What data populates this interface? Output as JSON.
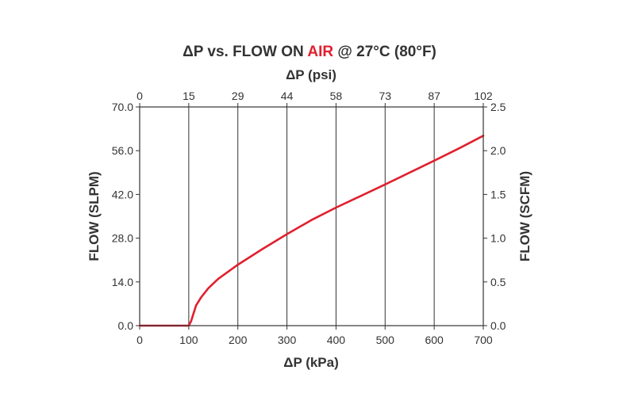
{
  "chart_data": {
    "type": "line",
    "title": {
      "prefix": "ΔP vs. FLOW ON ",
      "highlight": "AIR",
      "suffix": " @ 27°C (80°F)"
    },
    "xlabel_bottom": "ΔP (kPa)",
    "xlabel_top": "ΔP (psi)",
    "ylabel_left": "FLOW (SLPM)",
    "ylabel_right": "FLOW (SCFM)",
    "xlim": [
      0,
      700
    ],
    "ylim_left": [
      0,
      70
    ],
    "ylim_right": [
      0,
      2.5
    ],
    "x_ticks": [
      0,
      100,
      200,
      300,
      400,
      500,
      600,
      700
    ],
    "x_tick_labels": [
      "0",
      "100",
      "200",
      "300",
      "400",
      "500",
      "600",
      "700"
    ],
    "x_top_tick_labels": [
      "0",
      "15",
      "29",
      "44",
      "58",
      "73",
      "87",
      "102"
    ],
    "y_left_ticks": [
      0,
      14,
      28,
      42,
      56,
      70
    ],
    "y_left_tick_labels": [
      "0.0",
      "14.0",
      "28.0",
      "42.0",
      "56.0",
      "70.0"
    ],
    "y_right_ticks": [
      0,
      0.5,
      1.0,
      1.5,
      2.0,
      2.5
    ],
    "y_right_tick_labels": [
      "0.0",
      "0.5",
      "1.0",
      "1.5",
      "2.0",
      "2.5"
    ],
    "grid": "vertical",
    "series": [
      {
        "color": "#e0202f",
        "x": [
          0,
          100,
          105,
          110,
          115,
          125,
          140,
          160,
          200,
          250,
          300,
          350,
          400,
          450,
          500,
          550,
          600,
          650,
          700
        ],
        "y": [
          0,
          0,
          1.5,
          4,
          6.5,
          9,
          12,
          15,
          19.5,
          24.5,
          29.3,
          33.8,
          37.8,
          41.5,
          45.2,
          49,
          52.8,
          56.7,
          60.8
        ]
      }
    ]
  }
}
